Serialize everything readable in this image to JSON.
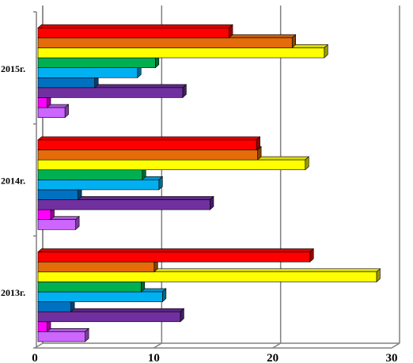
{
  "chart_data": {
    "type": "bar",
    "orientation": "horizontal",
    "style": "3d",
    "categories": [
      "2013г.",
      "2014г.",
      "2015г."
    ],
    "series": [
      {
        "color": "#cc66ff",
        "values": [
          4.1,
          3.3,
          2.4
        ]
      },
      {
        "color": "#ff00ff",
        "values": [
          0.9,
          1.2,
          0.9
        ]
      },
      {
        "color": "#7030a0",
        "values": [
          12.1,
          14.6,
          12.3
        ]
      },
      {
        "color": "#0070c0",
        "values": [
          2.9,
          3.5,
          4.9
        ]
      },
      {
        "color": "#00b0f0",
        "values": [
          10.6,
          10.3,
          8.5
        ]
      },
      {
        "color": "#00b050",
        "values": [
          8.8,
          8.9,
          10.0
        ]
      },
      {
        "color": "#ffff00",
        "values": [
          28.6,
          22.6,
          24.2
        ]
      },
      {
        "color": "#e46c0a",
        "values": [
          9.9,
          18.6,
          21.5
        ]
      },
      {
        "color": "#ff0000",
        "values": [
          23.0,
          18.5,
          16.2
        ]
      }
    ],
    "xlim": [
      0,
      30
    ],
    "xticks": [
      "0",
      "10",
      "20",
      "30"
    ],
    "grid": "vertical",
    "legend": "none"
  }
}
